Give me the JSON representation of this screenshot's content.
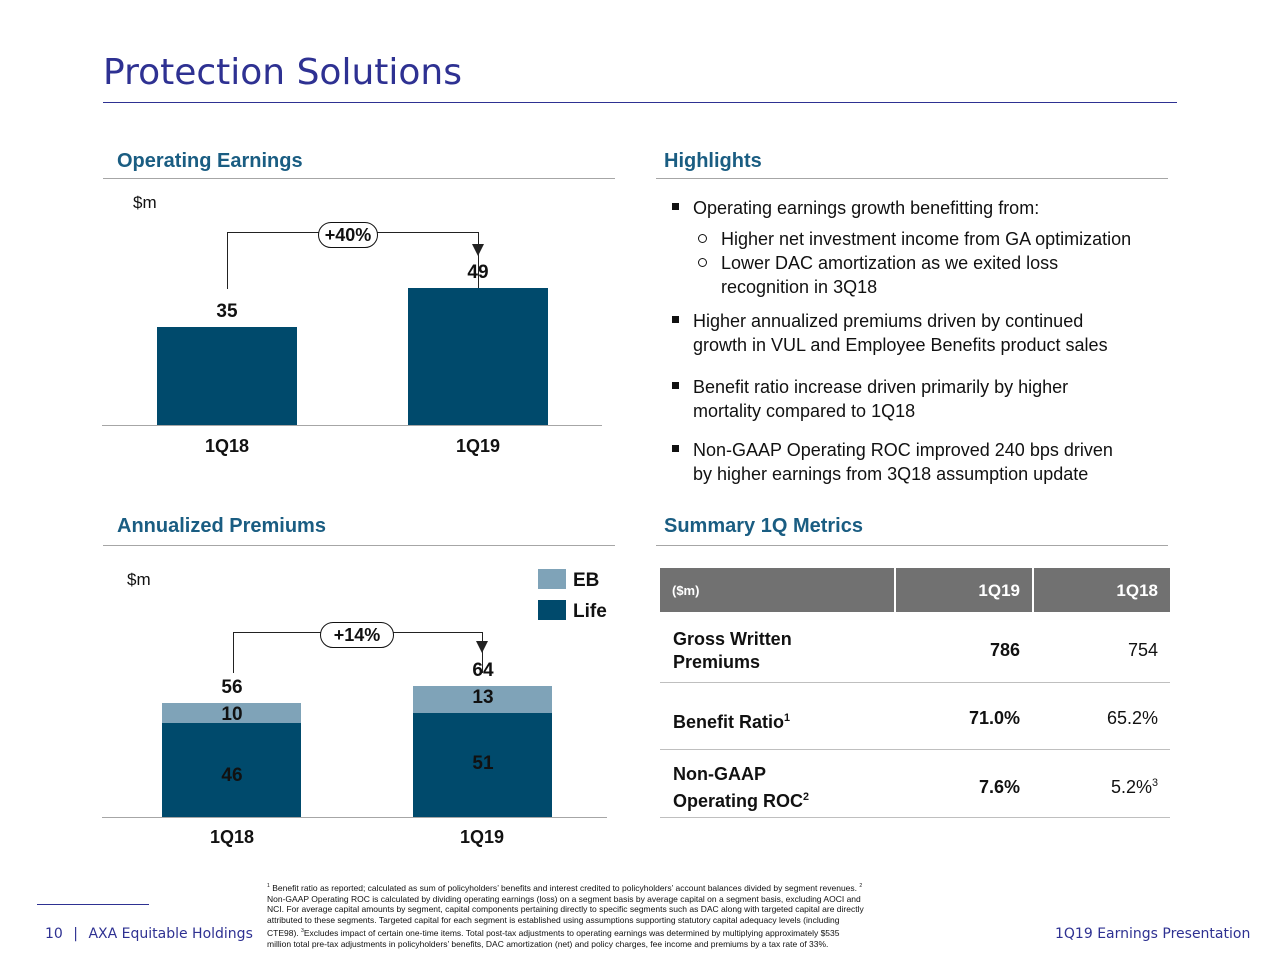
{
  "page": {
    "title": "Protection Solutions",
    "page_number": "10",
    "company": "AXA Equitable Holdings",
    "footer_right": "1Q19 Earnings Presentation"
  },
  "operating_earnings": {
    "heading": "Operating Earnings",
    "unit": "$m",
    "growth": "+40%",
    "chart_data": {
      "type": "bar",
      "categories": [
        "1Q18",
        "1Q19"
      ],
      "values": [
        35,
        49
      ],
      "title": "Operating Earnings",
      "ylabel": "$m",
      "ylim": [
        0,
        60
      ],
      "value_labels": [
        "35",
        "49"
      ]
    }
  },
  "highlights": {
    "heading": "Highlights",
    "b1": "Operating earnings growth benefitting from:",
    "b1_sub1": "Higher net investment income from GA optimization",
    "b1_sub2_l1": "Lower DAC amortization as we exited loss",
    "b1_sub2_l2": "recognition in 3Q18",
    "b2_l1": "Higher annualized premiums driven by continued",
    "b2_l2": "growth in VUL and Employee Benefits product sales",
    "b3_l1": "Benefit ratio increase driven primarily by higher",
    "b3_l2": "mortality compared to 1Q18",
    "b4_l1": "Non-GAAP Operating ROC improved 240 bps driven",
    "b4_l2": "by higher earnings from 3Q18 assumption update"
  },
  "annualized_premiums": {
    "heading": "Annualized Premiums",
    "unit": "$m",
    "growth": "+14%",
    "legend": [
      {
        "name": "EB",
        "color": "#7fa3b8"
      },
      {
        "name": "Life",
        "color": "#004a6c"
      }
    ],
    "chart_data": {
      "type": "bar",
      "stacked": true,
      "categories": [
        "1Q18",
        "1Q19"
      ],
      "series": [
        {
          "name": "Life",
          "values": [
            46,
            51
          ],
          "color": "#004a6c"
        },
        {
          "name": "EB",
          "values": [
            10,
            13
          ],
          "color": "#7fa3b8"
        }
      ],
      "totals": [
        56,
        64
      ],
      "title": "Annualized Premiums",
      "ylabel": "$m",
      "ylim": [
        0,
        80
      ],
      "life_labels": [
        "46",
        "51"
      ],
      "eb_labels": [
        "10",
        "13"
      ],
      "total_labels": [
        "56",
        "64"
      ]
    }
  },
  "summary": {
    "heading": "Summary 1Q Metrics",
    "header_unit": "($m)",
    "col1": "1Q19",
    "col2": "1Q18",
    "row1_label_l1": "Gross Written",
    "row1_label_l2": "Premiums",
    "row1_v1": "786",
    "row1_v2": "754",
    "row2_label": "Benefit Ratio",
    "row2_sup": "1",
    "row2_v1": "71.0%",
    "row2_v2": "65.2%",
    "row3_label_l1": "Non-GAAP",
    "row3_label_l2": "Operating ROC",
    "row3_sup": "2",
    "row3_v1": "7.6%",
    "row3_v2": "5.2%",
    "row3_v2_sup": "3"
  },
  "footnotes": {
    "l1_sup": "1",
    "l1": "Benefit ratio as reported; calculated as sum of policyholders’ benefits and interest credited to policyholders’ account balances divided by segment revenues.",
    "l1_sup2": "2",
    "l2": "Non-GAAP Operating ROC is calculated by dividing operating earnings (loss) on a segment basis by average capital on a segment basis, excluding AOCI and",
    "l3": "NCI. For average capital amounts by segment, capital components pertaining directly to specific segments such as DAC along with targeted capital are directly",
    "l4": "attributed to these segments. Targeted capital for each segment is established using assumptions supporting statutory capital adequacy levels (including",
    "l5a": "CTE98).",
    "l5_sup": "3",
    "l5b": "Excludes impact of certain one-time items. Total post-tax adjustments to operating earnings was determined by multiplying approximately $535",
    "l6": "million total pre-tax adjustments in policyholders’ benefits, DAC amortization (net) and policy charges, fee income and premiums by a tax rate of 33%."
  }
}
